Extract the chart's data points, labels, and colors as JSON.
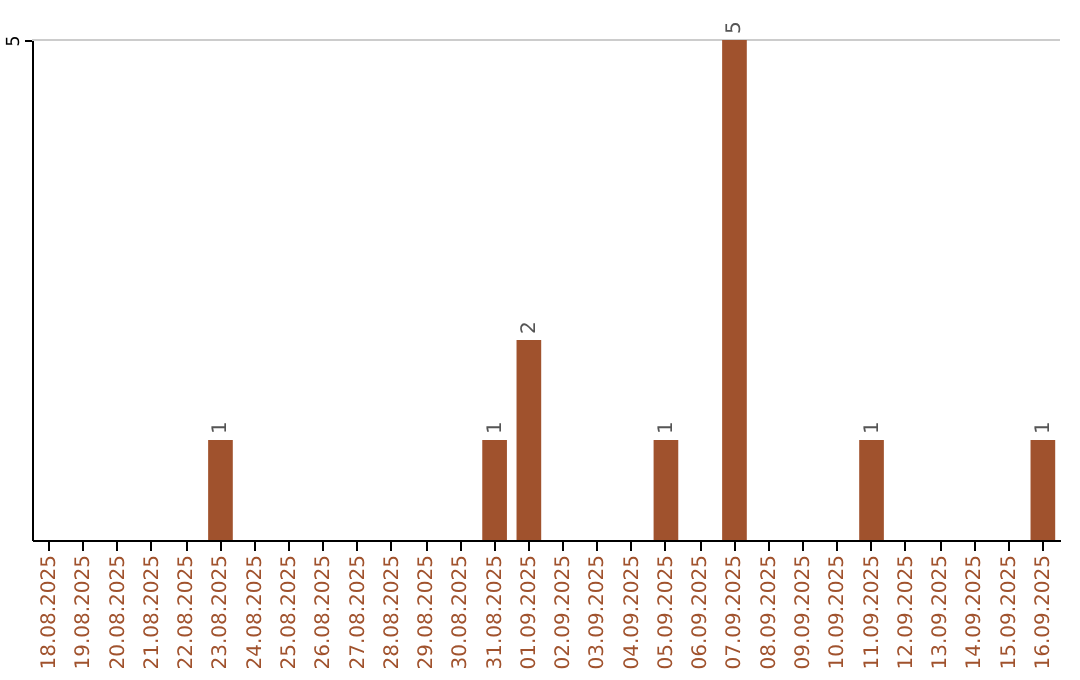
{
  "chart_data": {
    "type": "bar",
    "categories": [
      "18.08.2025",
      "19.08.2025",
      "20.08.2025",
      "21.08.2025",
      "22.08.2025",
      "23.08.2025",
      "24.08.2025",
      "25.08.2025",
      "26.08.2025",
      "27.08.2025",
      "28.08.2025",
      "29.08.2025",
      "30.08.2025",
      "31.08.2025",
      "01.09.2025",
      "02.09.2025",
      "03.09.2025",
      "04.09.2025",
      "05.09.2025",
      "06.09.2025",
      "07.09.2025",
      "08.09.2025",
      "09.09.2025",
      "10.09.2025",
      "11.09.2025",
      "12.09.2025",
      "13.09.2025",
      "14.09.2025",
      "15.09.2025",
      "16.09.2025"
    ],
    "values": [
      0,
      0,
      0,
      0,
      0,
      1,
      0,
      0,
      0,
      0,
      0,
      0,
      0,
      1,
      2,
      0,
      0,
      0,
      1,
      0,
      5,
      0,
      0,
      0,
      1,
      0,
      0,
      0,
      0,
      1
    ],
    "value_labels": [
      null,
      null,
      null,
      null,
      null,
      "1",
      null,
      null,
      null,
      null,
      null,
      null,
      null,
      "1",
      "2",
      null,
      null,
      null,
      "1",
      null,
      "5",
      null,
      null,
      null,
      "1",
      null,
      null,
      null,
      null,
      "1"
    ],
    "color": "#a0522d",
    "ref_lines": [
      {
        "axis": "y",
        "value": 5,
        "color": "#cccccc"
      }
    ],
    "annotations": [
      "5"
    ]
  }
}
